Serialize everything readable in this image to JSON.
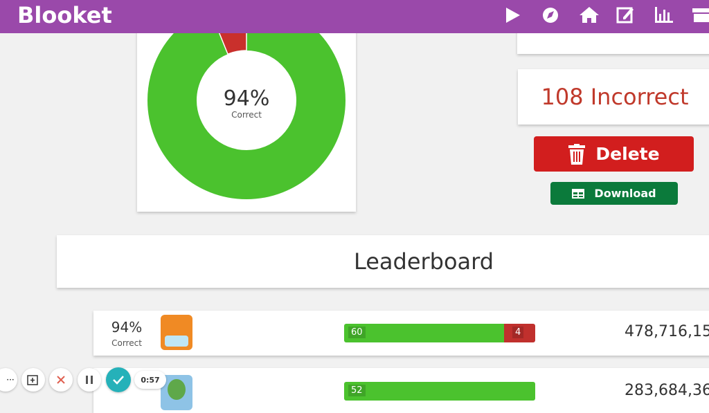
{
  "header": {
    "brand": "Blooket"
  },
  "summary": {
    "percent": "94%",
    "percent_label": "Correct",
    "incorrect": "108 Incorrect"
  },
  "actions": {
    "delete": "Delete",
    "download": "Download"
  },
  "leaderboard": {
    "title": "Leaderboard",
    "rows": [
      {
        "percent": "94%",
        "percent_label": "Correct",
        "correct": "60",
        "incorrect": "4",
        "score": "478,716,15"
      },
      {
        "correct": "52",
        "score": "283,684,36"
      }
    ]
  },
  "recorder": {
    "time": "0:57"
  }
}
